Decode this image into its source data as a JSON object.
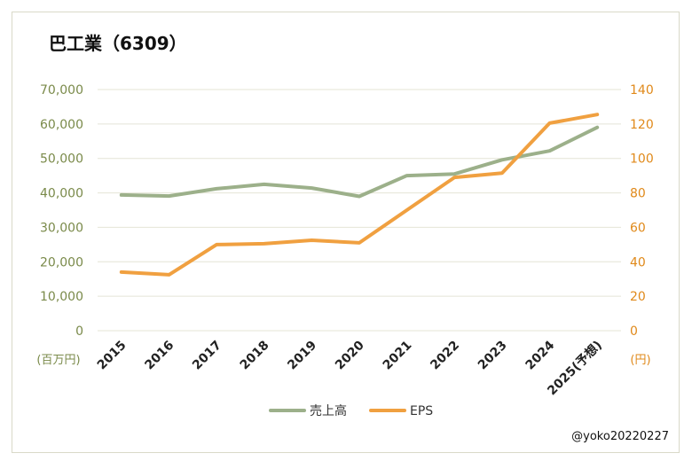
{
  "chart_data": {
    "type": "line",
    "title": "巴工業（6309）",
    "categories": [
      "2015",
      "2016",
      "2017",
      "2018",
      "2019",
      "2020",
      "2021",
      "2022",
      "2023",
      "2024",
      "2025(予想)"
    ],
    "series": [
      {
        "name": "売上高",
        "axis": "left",
        "color": "#9cb08a",
        "values": [
          39400,
          39100,
          41200,
          42500,
          41400,
          39000,
          45000,
          45500,
          49600,
          52200,
          59000
        ]
      },
      {
        "name": "EPS",
        "axis": "right",
        "color": "#f0a040",
        "values": [
          34,
          32.5,
          50,
          50.5,
          52.5,
          51,
          70,
          89,
          91.5,
          120.5,
          125.5
        ]
      }
    ],
    "y_left": {
      "min": 0,
      "max": 70000,
      "ticks": [
        0,
        10000,
        20000,
        30000,
        40000,
        50000,
        60000,
        70000
      ],
      "tick_labels": [
        "0",
        "10,000",
        "20,000",
        "30,000",
        "40,000",
        "50,000",
        "60,000",
        "70,000"
      ],
      "unit": "(百万円)"
    },
    "y_right": {
      "min": 0,
      "max": 140,
      "ticks": [
        0,
        20,
        40,
        60,
        80,
        100,
        120,
        140
      ],
      "tick_labels": [
        "0",
        "20",
        "40",
        "60",
        "80",
        "100",
        "120",
        "140"
      ],
      "unit": "(円)"
    },
    "grid": true,
    "legend_position": "bottom"
  },
  "watermark": "@yoko20220227"
}
